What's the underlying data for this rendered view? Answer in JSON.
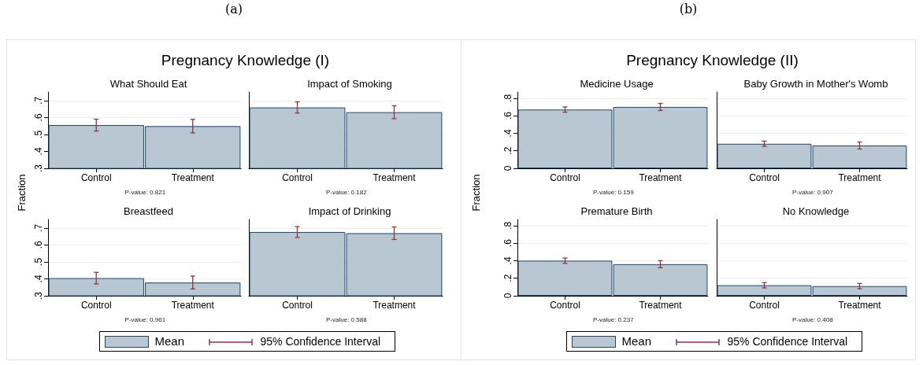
{
  "chart_data": [
    {
      "type": "bar",
      "title": "What Should Eat",
      "ylabel": "Fraction",
      "legend": "bottom",
      "categories": [
        "Control",
        "Treatment"
      ],
      "series": [
        {
          "name": "Mean",
          "color": "#b9c7d3",
          "values": [
            0.555,
            0.549
          ],
          "errors": [
            0.035,
            0.04
          ]
        }
      ],
      "ylim": [
        0.3,
        0.75
      ],
      "yticks": [
        {
          "value": 0.3,
          "label": ".3"
        },
        {
          "value": 0.4,
          "label": ".4"
        },
        {
          "value": 0.5,
          "label": ".5"
        },
        {
          "value": 0.6,
          "label": ".6"
        },
        {
          "value": 0.7,
          "label": ".7"
        }
      ],
      "grid": "y",
      "annotations": [
        "(a)",
        "Pregnancy Knowledge (I)",
        "95% Confidence Interval",
        "P-value: 0.821"
      ]
    },
    {
      "type": "bar",
      "title": "Impact of Smoking",
      "categories": [
        "Control",
        "Treatment"
      ],
      "series": [
        {
          "color": "#b9c7d3",
          "values": [
            0.659,
            0.631
          ],
          "errors": [
            0.033,
            0.038
          ]
        }
      ],
      "ylim": [
        0.3,
        0.75
      ],
      "yticks": [
        {
          "value": 0.3,
          "label": null
        },
        {
          "value": 0.4,
          "label": null
        },
        {
          "value": 0.5,
          "label": null
        },
        {
          "value": 0.6,
          "label": null
        },
        {
          "value": 0.7,
          "label": null
        }
      ],
      "grid": "y",
      "tick_labels": "x",
      "annotations": [
        "P-value: 0.182"
      ]
    },
    {
      "type": "bar",
      "title": "Breastfeed",
      "categories": [
        "Control",
        "Treatment"
      ],
      "series": [
        {
          "color": "#b9c7d3",
          "values": [
            0.404,
            0.378
          ],
          "errors": [
            0.034,
            0.038
          ]
        }
      ],
      "ylim": [
        0.3,
        0.75
      ],
      "yticks": [
        {
          "value": 0.3,
          "label": ".3"
        },
        {
          "value": 0.4,
          "label": ".4"
        },
        {
          "value": 0.5,
          "label": ".5"
        },
        {
          "value": 0.6,
          "label": ".6"
        },
        {
          "value": 0.7,
          "label": ".7"
        }
      ],
      "grid": "y",
      "annotations": [
        "P-value: 0.961"
      ]
    },
    {
      "type": "bar",
      "title": "Impact of Drinking",
      "categories": [
        "Control",
        "Treatment"
      ],
      "series": [
        {
          "color": "#b9c7d3",
          "values": [
            0.676,
            0.669
          ],
          "errors": [
            0.032,
            0.037
          ]
        }
      ],
      "ylim": [
        0.3,
        0.75
      ],
      "yticks": [
        {
          "value": 0.3,
          "label": null
        },
        {
          "value": 0.4,
          "label": null
        },
        {
          "value": 0.5,
          "label": null
        },
        {
          "value": 0.6,
          "label": null
        },
        {
          "value": 0.7,
          "label": null
        }
      ],
      "grid": "y",
      "tick_labels": "x",
      "annotations": [
        "P-value: 0.588"
      ]
    },
    {
      "type": "bar",
      "title": "Medicine Usage",
      "ylabel": "Fraction",
      "legend": "bottom",
      "categories": [
        "Control",
        "Treatment"
      ],
      "series": [
        {
          "name": "Mean",
          "color": "#b9c7d3",
          "values": [
            0.67,
            0.7
          ],
          "errors": [
            0.03,
            0.04
          ]
        }
      ],
      "ylim": [
        0,
        0.87
      ],
      "yticks": [
        {
          "value": 0,
          "label": "0"
        },
        {
          "value": 0.2,
          "label": ".2"
        },
        {
          "value": 0.4,
          "label": ".4"
        },
        {
          "value": 0.6,
          "label": ".6"
        },
        {
          "value": 0.8,
          "label": ".8"
        }
      ],
      "grid": "y",
      "annotations": [
        "(b)",
        "Pregnancy Knowledge (II)",
        "95% Confidence Interval",
        "P-value: 0.159"
      ]
    },
    {
      "type": "bar",
      "title": "Baby Growth in Mother's Womb",
      "categories": [
        "Control",
        "Treatment"
      ],
      "series": [
        {
          "color": "#b9c7d3",
          "values": [
            0.28,
            0.26
          ],
          "errors": [
            0.03,
            0.04
          ]
        }
      ],
      "ylim": [
        0,
        0.87
      ],
      "yticks": [
        {
          "value": 0,
          "label": null
        },
        {
          "value": 0.2,
          "label": null
        },
        {
          "value": 0.4,
          "label": null
        },
        {
          "value": 0.6,
          "label": null
        },
        {
          "value": 0.8,
          "label": null
        }
      ],
      "grid": "y",
      "tick_labels": "x",
      "annotations": [
        "P-value: 0.907"
      ]
    },
    {
      "type": "bar",
      "title": "Premature Birth",
      "categories": [
        "Control",
        "Treatment"
      ],
      "series": [
        {
          "color": "#b9c7d3",
          "values": [
            0.4,
            0.36
          ],
          "errors": [
            0.03,
            0.04
          ]
        }
      ],
      "ylim": [
        0,
        0.87
      ],
      "yticks": [
        {
          "value": 0,
          "label": "0"
        },
        {
          "value": 0.2,
          "label": ".2"
        },
        {
          "value": 0.4,
          "label": ".4"
        },
        {
          "value": 0.6,
          "label": ".6"
        },
        {
          "value": 0.8,
          "label": ".8"
        }
      ],
      "grid": "y",
      "annotations": [
        "P-value: 0.237"
      ]
    },
    {
      "type": "bar",
      "title": "No Knowledge",
      "categories": [
        "Control",
        "Treatment"
      ],
      "series": [
        {
          "color": "#b9c7d3",
          "values": [
            0.12,
            0.11
          ],
          "errors": [
            0.03,
            0.03
          ]
        }
      ],
      "ylim": [
        0,
        0.87
      ],
      "yticks": [
        {
          "value": 0,
          "label": null
        },
        {
          "value": 0.2,
          "label": null
        },
        {
          "value": 0.4,
          "label": null
        },
        {
          "value": 0.6,
          "label": null
        },
        {
          "value": 0.8,
          "label": null
        }
      ],
      "grid": "y",
      "tick_labels": "x",
      "annotations": [
        "P-value: 0.408"
      ]
    }
  ]
}
